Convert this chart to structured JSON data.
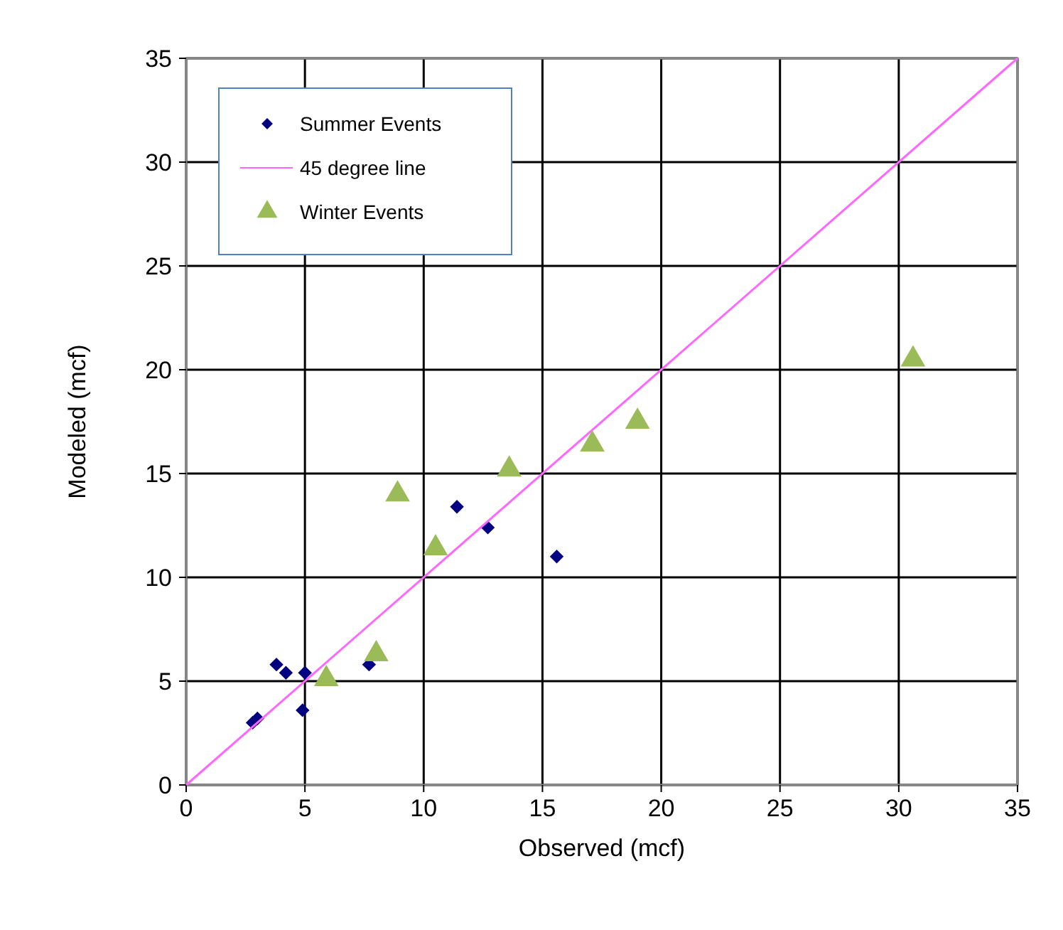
{
  "chart_data": {
    "type": "scatter",
    "xlabel": "Observed (mcf)",
    "ylabel": "Modeled (mcf)",
    "xlim": [
      0,
      35
    ],
    "ylim": [
      0,
      35
    ],
    "xticks": [
      0,
      5,
      10,
      15,
      20,
      25,
      30,
      35
    ],
    "yticks": [
      0,
      5,
      10,
      15,
      20,
      25,
      30,
      35
    ],
    "grid": true,
    "legend": "top left",
    "series": [
      {
        "name": "Summer Events",
        "marker": "diamond",
        "color": "#000080",
        "x": [
          2.8,
          3.0,
          3.8,
          4.2,
          5.0,
          4.9,
          7.7,
          11.4,
          12.7,
          15.6
        ],
        "values": [
          3.0,
          3.2,
          5.8,
          5.4,
          5.4,
          3.6,
          5.8,
          13.4,
          12.4,
          11.0
        ]
      },
      {
        "name": "45 degree  line",
        "type": "line",
        "marker": "none",
        "color": "#ff66ff",
        "x": [
          0,
          35
        ],
        "values": [
          0,
          35
        ]
      },
      {
        "name": "Winter Events",
        "marker": "triangle",
        "color": "#9bbb59",
        "x": [
          5.9,
          8.0,
          8.9,
          10.5,
          13.6,
          17.1,
          19.0,
          30.6
        ],
        "values": [
          5.1,
          6.3,
          14.0,
          11.4,
          15.2,
          16.4,
          17.5,
          20.5
        ]
      }
    ]
  }
}
